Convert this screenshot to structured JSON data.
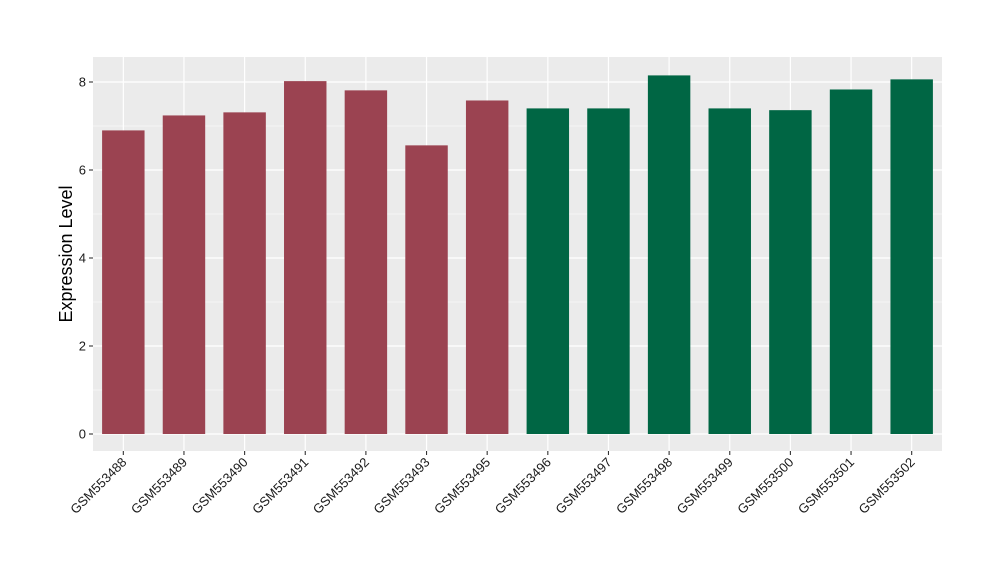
{
  "chart_data": {
    "type": "bar",
    "title": "",
    "xlabel": "",
    "ylabel": "Expression Level",
    "ylim": [
      0,
      8.6
    ],
    "yticks": [
      0,
      2,
      4,
      6,
      8
    ],
    "grid": true,
    "categories": [
      "GSM553488",
      "GSM553489",
      "GSM553490",
      "GSM553491",
      "GSM553492",
      "GSM553493",
      "GSM553495",
      "GSM553496",
      "GSM553497",
      "GSM553498",
      "GSM553499",
      "GSM553500",
      "GSM553501",
      "GSM553502"
    ],
    "values": [
      6.9,
      7.24,
      7.31,
      8.02,
      7.81,
      6.56,
      7.58,
      7.4,
      7.4,
      8.15,
      7.4,
      7.36,
      7.83,
      8.06
    ],
    "groups": [
      0,
      0,
      0,
      0,
      0,
      0,
      0,
      1,
      1,
      1,
      1,
      1,
      1,
      1
    ],
    "group_colors": [
      "#9b4351",
      "#006644"
    ],
    "panel_color": "#ebebeb",
    "grid_color": "#ffffff"
  }
}
